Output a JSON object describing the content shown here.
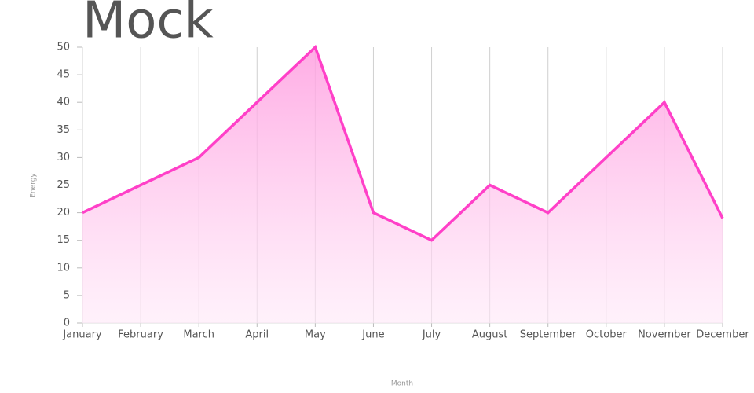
{
  "chart_data": {
    "type": "area",
    "title": "Mock",
    "x_label": "Month",
    "y_label": "Energy",
    "categories": [
      "January",
      "February",
      "March",
      "April",
      "May",
      "June",
      "July",
      "August",
      "September",
      "October",
      "November",
      "December"
    ],
    "values": [
      20,
      25,
      30,
      40,
      50,
      20,
      15,
      25,
      20,
      30,
      40,
      19
    ],
    "color": "#ff40c8",
    "ylim": [
      0,
      50
    ],
    "yticks": [
      0,
      5,
      10,
      15,
      20,
      25,
      30,
      35,
      40,
      45,
      50
    ],
    "grid": true
  }
}
